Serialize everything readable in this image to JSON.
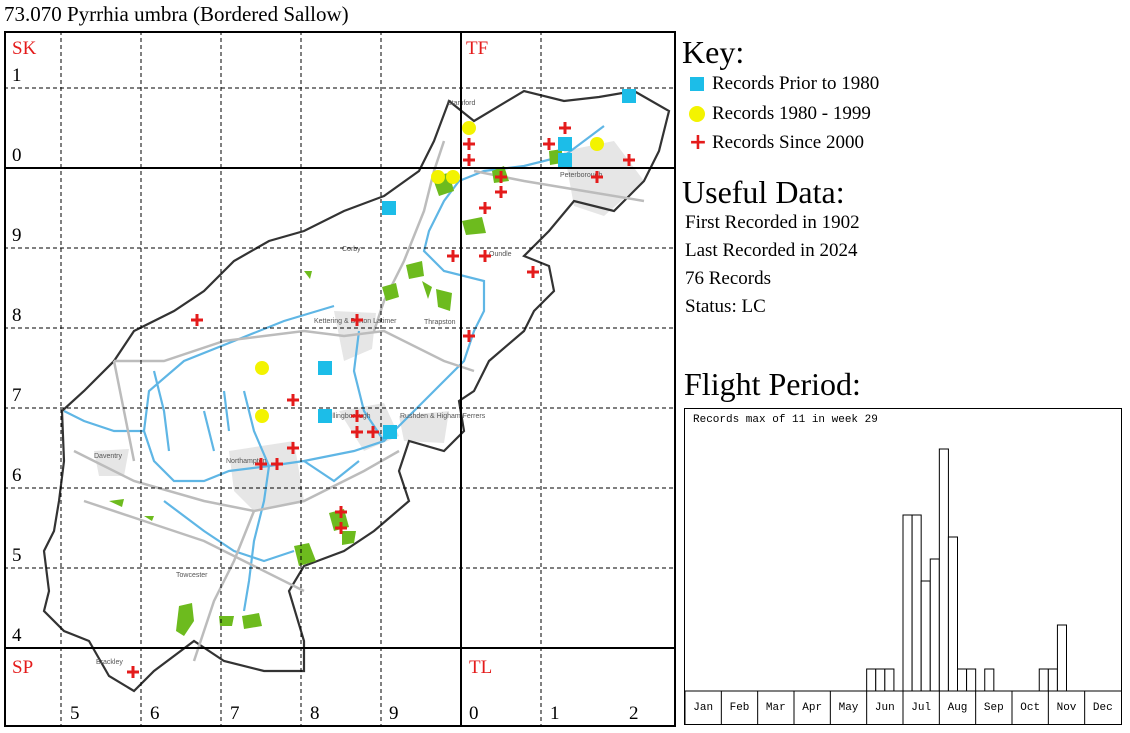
{
  "title": "73.070 Pyrrhia umbra (Bordered Sallow)",
  "map": {
    "square_labels": [
      "SK",
      "TF",
      "SP",
      "TL"
    ],
    "row_labels": [
      "1",
      "0",
      "9",
      "8",
      "7",
      "6",
      "5",
      "4"
    ],
    "col_labels": [
      "5",
      "6",
      "7",
      "8",
      "9",
      "0",
      "1",
      "2"
    ],
    "place_names": [
      "Stamford",
      "Peterborough",
      "Corby",
      "Oundle",
      "Kettering & Burton Latimer",
      "Thrapston",
      "Wellingborough",
      "Rushden & Higham Ferrers",
      "Daventry",
      "Northampton",
      "Towcester",
      "Brackley"
    ],
    "colors": {
      "prior_1980": "#1cbde8",
      "r1980_1999": "#f3f300",
      "since_2000": "#e41b1b",
      "woodland": "#6dbb1e",
      "rivers": "#5fb6e5",
      "roads": "#bcbcbc",
      "urban": "#e6e6e6"
    }
  },
  "key": {
    "title": "Key:",
    "items": [
      {
        "label": "Records Prior to 1980",
        "symbol": "blue-square"
      },
      {
        "label": "Records 1980 - 1999",
        "symbol": "yellow-circle"
      },
      {
        "label": "Records Since 2000",
        "symbol": "red-plus"
      }
    ]
  },
  "useful_data": {
    "title": "Useful Data:",
    "first_recorded": "First Recorded in 1902",
    "last_recorded": "Last Recorded in 2024",
    "records": "76 Records",
    "status": "Status: LC"
  },
  "flight_period": {
    "title": "Flight Period:",
    "note": "Records max of 11 in week 29"
  },
  "chart_data": {
    "type": "bar",
    "title": "Flight Period:",
    "annotation": "Records max of 11 in week 29",
    "month_labels": [
      "Jan",
      "Feb",
      "Mar",
      "Apr",
      "May",
      "Jun",
      "Jul",
      "Aug",
      "Sep",
      "Oct",
      "Nov",
      "Dec"
    ],
    "weeks": [
      1,
      2,
      3,
      4,
      5,
      6,
      7,
      8,
      9,
      10,
      11,
      12,
      13,
      14,
      15,
      16,
      17,
      18,
      19,
      20,
      21,
      22,
      23,
      24,
      25,
      26,
      27,
      28,
      29,
      30,
      31,
      32,
      33,
      34,
      35,
      36,
      37,
      38,
      39,
      40,
      41,
      42,
      43,
      44,
      45,
      46,
      47,
      48
    ],
    "values": [
      0,
      0,
      0,
      0,
      0,
      0,
      0,
      0,
      0,
      0,
      0,
      0,
      0,
      0,
      0,
      0,
      0,
      0,
      0,
      0,
      1,
      1,
      1,
      0,
      8,
      8,
      5,
      6,
      11,
      7,
      1,
      1,
      0,
      1,
      0,
      0,
      0,
      0,
      0,
      1,
      1,
      3,
      0,
      0,
      0,
      0,
      0,
      0
    ],
    "ymax": 11
  }
}
